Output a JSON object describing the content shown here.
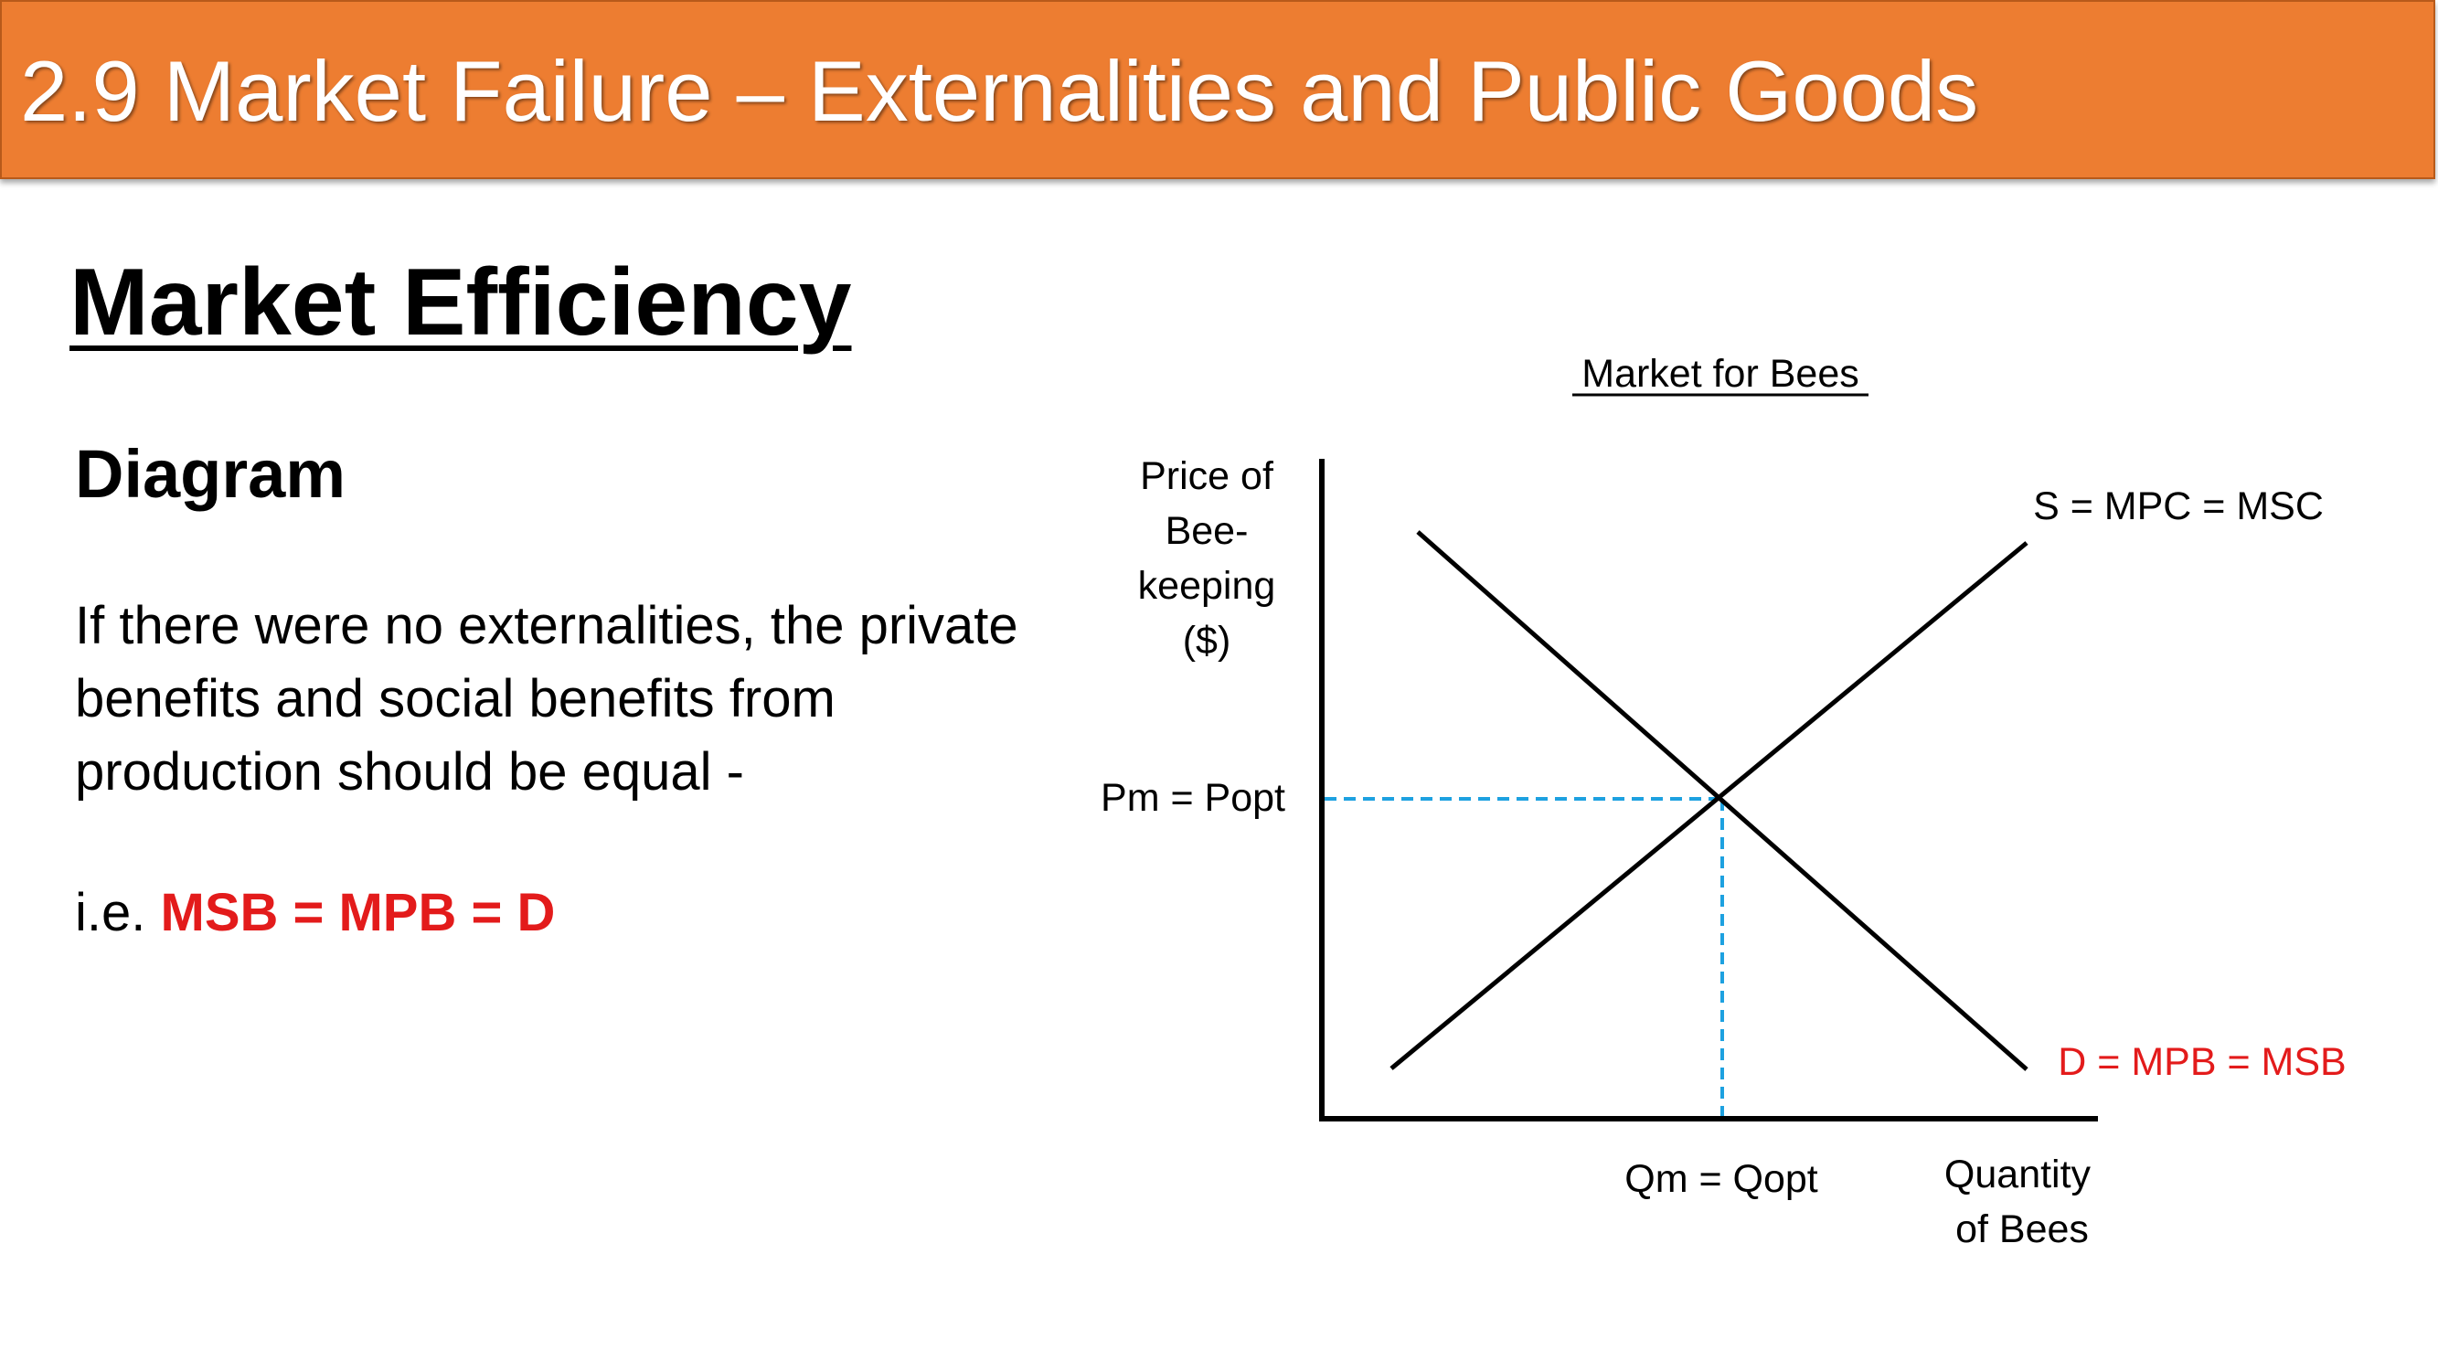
{
  "header": {
    "title": "2.9 Market Failure – Externalities and Public Goods"
  },
  "slide": {
    "heading": "Market Efficiency",
    "subheading": "Diagram",
    "body": "If there were no externalities, the private benefits and social benefits from production should be equal -",
    "ie_prefix": "i.e. ",
    "ie_highlight": "MSB = MPB = D"
  },
  "diagram": {
    "title": "Market for Bees",
    "y_axis_label": [
      "Price of",
      "Bee-",
      "keeping",
      "($)"
    ],
    "x_axis_label": [
      "Quantity",
      "of Bees"
    ],
    "price_label": "Pm = Popt",
    "quantity_label": "Qm = Qopt",
    "supply_label": "S = MPC = MSC",
    "demand_label": "D = MPB = MSB",
    "colors": {
      "axis": "#000000",
      "curves": "#000000",
      "guides": "#1DA1E0",
      "demand_label": "#E31B1B"
    }
  }
}
